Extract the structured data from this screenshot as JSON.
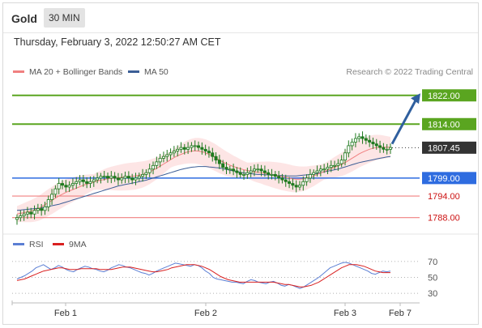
{
  "header": {
    "instrument": "Gold",
    "timeframe": "30 MIN",
    "datetime": "Thursday, February 3, 2022 12:50:27 AM CET"
  },
  "legend": {
    "ma20_label": "MA 20 + Bollinger Bands",
    "ma50_label": "MA 50",
    "credit": "Research © 2022 Trading Central"
  },
  "rsi_legend": {
    "rsi_label": "RSI",
    "ma9_label": "9MA"
  },
  "colors": {
    "ma20": "#f08080",
    "bollinger_fill": "#fde0e0",
    "ma50": "#3c5e96",
    "resistance": "#5aa520",
    "support_blue": "#2e6ce0",
    "support_red": "#f08080",
    "candle": "#1f7a1f",
    "last_price": "#333333",
    "arrow": "#2f5f9e",
    "rsi": "#5b7fd4",
    "rsi_ma": "#d92020"
  },
  "chart_data": [
    {
      "type": "candlestick",
      "title": "Gold 30 MIN",
      "ylim": [
        1785,
        1826
      ],
      "x_labels": [
        "Feb 1",
        "Feb 2",
        "Feb 3",
        "Feb 7"
      ],
      "levels": [
        {
          "label": "1822.00",
          "value": 1822.0,
          "kind": "resistance"
        },
        {
          "label": "1814.00",
          "value": 1814.0,
          "kind": "resistance"
        },
        {
          "label": "1807.45",
          "value": 1807.45,
          "kind": "last"
        },
        {
          "label": "1799.00",
          "value": 1799.0,
          "kind": "pivot"
        },
        {
          "label": "1794.00",
          "value": 1794.0,
          "kind": "support"
        },
        {
          "label": "1788.00",
          "value": 1788.0,
          "kind": "support"
        }
      ],
      "close": [
        1788,
        1788.5,
        1789,
        1789.5,
        1789,
        1790,
        1790.5,
        1790,
        1791,
        1793,
        1794.5,
        1796,
        1797.5,
        1797,
        1796.5,
        1797,
        1797.5,
        1798,
        1798.5,
        1798,
        1797.5,
        1798,
        1798.5,
        1799,
        1799.5,
        1799.5,
        1799,
        1799.5,
        1799,
        1798.5,
        1799,
        1799.5,
        1799,
        1798.5,
        1799,
        1799.5,
        1800,
        1800.5,
        1801.5,
        1802.5,
        1803.5,
        1804.5,
        1805,
        1805.5,
        1806,
        1806.5,
        1807,
        1807.5,
        1807,
        1807.5,
        1808,
        1808,
        1807.5,
        1807,
        1806.5,
        1806,
        1805,
        1804,
        1803,
        1802,
        1801.5,
        1801.5,
        1801,
        1800.5,
        1800,
        1800,
        1800.5,
        1801,
        1801.5,
        1801.5,
        1801,
        1800.5,
        1800,
        1800,
        1799.5,
        1799,
        1798.5,
        1798,
        1797.5,
        1797,
        1796.5,
        1797,
        1798,
        1799,
        1800,
        1800.5,
        1801,
        1801.5,
        1801.5,
        1802,
        1802.5,
        1802.5,
        1803,
        1804,
        1806,
        1808,
        1809,
        1810,
        1810.5,
        1810,
        1809.5,
        1809,
        1808.5,
        1808,
        1807.5,
        1807,
        1807,
        1807.5
      ],
      "ma20": [
        1789,
        1789.2,
        1789.4,
        1789.6,
        1789.8,
        1790.1,
        1790.5,
        1791,
        1791.6,
        1792.2,
        1792.8,
        1793.4,
        1794,
        1794.5,
        1795,
        1795.4,
        1795.8,
        1796.2,
        1796.6,
        1797,
        1797.3,
        1797.6,
        1797.9,
        1798.2,
        1798.4,
        1798.6,
        1798.8,
        1798.9,
        1799,
        1799.1,
        1799.2,
        1799.3,
        1799.4,
        1799.5,
        1799.6,
        1799.8,
        1800,
        1800.3,
        1800.7,
        1801.2,
        1801.7,
        1802.3,
        1802.9,
        1803.5,
        1804.1,
        1804.7,
        1805.2,
        1805.6,
        1806,
        1806.3,
        1806.5,
        1806.6,
        1806.5,
        1806.3,
        1806,
        1805.6,
        1805.1,
        1804.6,
        1804,
        1803.5,
        1803,
        1802.6,
        1802.2,
        1801.9,
        1801.6,
        1801.3,
        1801.1,
        1800.9,
        1800.7,
        1800.6,
        1800.5,
        1800.3,
        1800.2,
        1800,
        1799.8,
        1799.6,
        1799.4,
        1799.2,
        1799,
        1798.8,
        1798.7,
        1798.7,
        1798.8,
        1799,
        1799.3,
        1799.6,
        1800,
        1800.4,
        1800.8,
        1801.2,
        1801.6,
        1802,
        1802.4,
        1802.8,
        1803.3,
        1803.9,
        1804.5,
        1805.1,
        1805.7,
        1806.2,
        1806.6,
        1807,
        1807.3,
        1807.5,
        1807.6,
        1807.6,
        1807.6,
        1807.6
      ],
      "ma50": [
        1790,
        1790.1,
        1790.2,
        1790.3,
        1790.4,
        1790.5,
        1790.6,
        1790.7,
        1790.9,
        1791.1,
        1791.3,
        1791.5,
        1791.7,
        1792,
        1792.3,
        1792.6,
        1792.9,
        1793.2,
        1793.5,
        1793.8,
        1794.1,
        1794.4,
        1794.7,
        1795,
        1795.3,
        1795.6,
        1795.9,
        1796.2,
        1796.5,
        1796.8,
        1797,
        1797.2,
        1797.4,
        1797.6,
        1797.8,
        1798,
        1798.2,
        1798.4,
        1798.7,
        1799,
        1799.3,
        1799.6,
        1799.9,
        1800.2,
        1800.5,
        1800.8,
        1801.1,
        1801.4,
        1801.6,
        1801.8,
        1802,
        1802.1,
        1802.2,
        1802.2,
        1802.2,
        1802.1,
        1802,
        1801.9,
        1801.8,
        1801.6,
        1801.4,
        1801.2,
        1801,
        1800.8,
        1800.6,
        1800.4,
        1800.3,
        1800.2,
        1800.1,
        1800,
        1800,
        1799.9,
        1799.9,
        1799.8,
        1799.8,
        1799.7,
        1799.7,
        1799.6,
        1799.6,
        1799.6,
        1799.6,
        1799.7,
        1799.8,
        1799.9,
        1800,
        1800.1,
        1800.3,
        1800.5,
        1800.7,
        1800.9,
        1801.1,
        1801.3,
        1801.5,
        1801.8,
        1802.1,
        1802.4,
        1802.7,
        1803,
        1803.3,
        1803.5,
        1803.7,
        1803.9,
        1804.1,
        1804.3,
        1804.5,
        1804.7,
        1804.9,
        1805
      ]
    },
    {
      "type": "line",
      "title": "",
      "ylim": [
        25,
        75
      ],
      "y_ticks": [
        "70",
        "50",
        "30"
      ],
      "series": [
        {
          "name": "RSI",
          "values": [
            48,
            50,
            52,
            55,
            58,
            62,
            64,
            66,
            63,
            60,
            62,
            65,
            63,
            60,
            58,
            57,
            60,
            62,
            64,
            63,
            61,
            60,
            58,
            57,
            59,
            62,
            64,
            66,
            65,
            63,
            62,
            60,
            58,
            56,
            55,
            53,
            55,
            58,
            60,
            62,
            64,
            66,
            68,
            67,
            66,
            65,
            64,
            66,
            65,
            62,
            58,
            55,
            50,
            48,
            47,
            46,
            45,
            44,
            44,
            43,
            42,
            45,
            47,
            46,
            44,
            43,
            42,
            44,
            45,
            43,
            40,
            39,
            41,
            40,
            38,
            36,
            38,
            41,
            44,
            47,
            50,
            54,
            58,
            62,
            64,
            66,
            68,
            69,
            68,
            66,
            64,
            62,
            60,
            58,
            55,
            54,
            56,
            58,
            57,
            58
          ]
        },
        {
          "name": "9MA",
          "values": [
            46,
            47,
            48,
            50,
            52,
            54,
            56,
            58,
            59,
            60,
            61,
            62,
            62,
            61,
            60,
            60,
            60,
            61,
            61,
            61,
            61,
            61,
            60,
            60,
            60,
            60,
            61,
            62,
            63,
            63,
            63,
            62,
            61,
            60,
            59,
            58,
            57,
            57,
            58,
            59,
            60,
            62,
            63,
            64,
            65,
            66,
            66,
            66,
            65,
            64,
            62,
            60,
            57,
            54,
            51,
            49,
            47,
            46,
            45,
            44,
            44,
            44,
            44,
            44,
            44,
            44,
            44,
            44,
            44,
            43,
            42,
            41,
            41,
            40,
            39,
            38,
            38,
            39,
            40,
            42,
            44,
            47,
            50,
            53,
            56,
            59,
            62,
            64,
            66,
            66,
            66,
            65,
            64,
            62,
            60,
            58,
            57,
            56,
            56,
            56
          ]
        }
      ]
    }
  ]
}
